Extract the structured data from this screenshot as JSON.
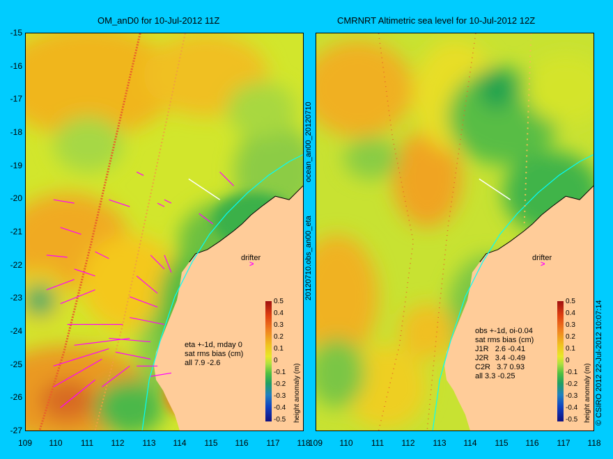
{
  "left_panel": {
    "title": "OM_anD0 for 10-Jul-2012 11Z",
    "stats": [
      "eta +-1d, mday 0",
      "sat rms bias (cm)",
      "all 7.9 -2.6"
    ],
    "drifter_label": "drifter",
    "colorbar_label": "height anomaly (m)"
  },
  "right_panel": {
    "title": "CMRNRT Altimetric sea level  for 10-Jul-2012 12Z",
    "stats": [
      "obs +-1d, oi-0.04",
      "sat rms bias (cm)",
      "J1R   2.6 -0.41",
      "J2R   3.4 -0.49",
      "C2R   3.7 0.93",
      "all 3.3 -0.25"
    ],
    "drifter_label": "drifter",
    "colorbar_label": "height anomaly (m)"
  },
  "middle_label_top": "ocean_an00_20120710",
  "middle_label_bottom": "20120710.obs_an00_eta",
  "copyright": "© CSIRO 2012    22-Jul-2012 10:07:14",
  "y_ticks": [
    "-15",
    "-16",
    "-17",
    "-18",
    "-19",
    "-20",
    "-21",
    "-22",
    "-23",
    "-24",
    "-25",
    "-26",
    "-27"
  ],
  "x_ticks": [
    "109",
    "110",
    "111",
    "112",
    "113",
    "114",
    "115",
    "116",
    "117",
    "118"
  ],
  "colorbar_ticks": [
    "0.5",
    "0.4",
    "0.3",
    "0.2",
    "0.1",
    "0",
    "-0.1",
    "-0.2",
    "-0.3",
    "-0.4",
    "-0.5"
  ],
  "colors": {
    "background": "#00ccff",
    "land": "#ffcc99",
    "sea_mid": "#c8e632",
    "vectors": "#ff00ff",
    "coastline": "#00ffff"
  }
}
